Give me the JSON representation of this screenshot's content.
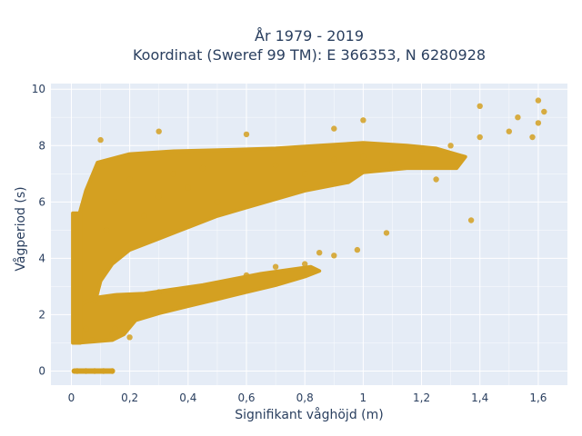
{
  "chart_data": {
    "type": "scatter",
    "title_lines": [
      "År 1979 - 2019",
      "Koordinat (Sweref 99 TM): E 366353, N 6280928"
    ],
    "xlabel": "Signifikant våghöjd (m)",
    "ylabel": "Vågperiod (s)",
    "xlim": [
      -0.07,
      1.7
    ],
    "ylim": [
      -0.5,
      10.2
    ],
    "x_ticks": [
      0,
      0.2,
      0.4,
      0.6,
      0.8,
      1,
      1.2,
      1.4,
      1.6
    ],
    "x_tick_labels": [
      "0",
      "0,2",
      "0,4",
      "0,6",
      "0,8",
      "1",
      "1,2",
      "1,4",
      "1,6"
    ],
    "y_ticks": [
      0,
      2,
      4,
      6,
      8,
      10
    ],
    "y_tick_labels": [
      "0",
      "2",
      "4",
      "6",
      "8",
      "10"
    ],
    "grid": true,
    "marker_color": "#d4a021",
    "plot_bgcolor": "#e5ecf6",
    "grid_color": "#ffffff",
    "representative_points": [
      {
        "x": 0.02,
        "y": 0.0
      },
      {
        "x": 0.05,
        "y": 0.0
      },
      {
        "x": 0.08,
        "y": 0.0
      },
      {
        "x": 0.11,
        "y": 0.0
      },
      {
        "x": 0.14,
        "y": 0.0
      },
      {
        "x": 0.02,
        "y": 1.2
      },
      {
        "x": 0.05,
        "y": 1.5
      },
      {
        "x": 0.08,
        "y": 2.5
      },
      {
        "x": 0.1,
        "y": 3.5
      },
      {
        "x": 0.12,
        "y": 5.0
      },
      {
        "x": 0.15,
        "y": 6.0
      },
      {
        "x": 0.2,
        "y": 6.8
      },
      {
        "x": 0.25,
        "y": 5.5
      },
      {
        "x": 0.3,
        "y": 6.2
      },
      {
        "x": 0.35,
        "y": 7.0
      },
      {
        "x": 0.4,
        "y": 6.5
      },
      {
        "x": 0.45,
        "y": 7.2
      },
      {
        "x": 0.5,
        "y": 6.0
      },
      {
        "x": 0.6,
        "y": 6.7
      },
      {
        "x": 0.7,
        "y": 7.3
      },
      {
        "x": 0.8,
        "y": 7.0
      },
      {
        "x": 0.9,
        "y": 7.5
      },
      {
        "x": 1.0,
        "y": 7.6
      },
      {
        "x": 1.1,
        "y": 7.4
      },
      {
        "x": 1.2,
        "y": 7.8
      },
      {
        "x": 1.3,
        "y": 8.0
      },
      {
        "x": 1.4,
        "y": 8.3
      },
      {
        "x": 1.5,
        "y": 8.5
      },
      {
        "x": 1.6,
        "y": 8.8
      },
      {
        "x": 0.1,
        "y": 8.2
      },
      {
        "x": 0.3,
        "y": 8.5
      },
      {
        "x": 0.6,
        "y": 8.4
      },
      {
        "x": 0.9,
        "y": 8.6
      },
      {
        "x": 1.0,
        "y": 8.9
      },
      {
        "x": 1.4,
        "y": 9.4
      },
      {
        "x": 1.53,
        "y": 9.0
      },
      {
        "x": 1.6,
        "y": 9.6
      },
      {
        "x": 1.62,
        "y": 9.2
      },
      {
        "x": 1.58,
        "y": 8.3
      },
      {
        "x": 1.37,
        "y": 5.35
      },
      {
        "x": 1.08,
        "y": 4.9
      },
      {
        "x": 1.25,
        "y": 6.8
      },
      {
        "x": 0.2,
        "y": 2.5
      },
      {
        "x": 0.3,
        "y": 2.8
      },
      {
        "x": 0.4,
        "y": 2.9
      },
      {
        "x": 0.5,
        "y": 3.1
      },
      {
        "x": 0.6,
        "y": 3.4
      },
      {
        "x": 0.7,
        "y": 3.7
      },
      {
        "x": 0.8,
        "y": 3.8
      },
      {
        "x": 0.9,
        "y": 4.1
      },
      {
        "x": 0.98,
        "y": 4.3
      },
      {
        "x": 0.85,
        "y": 4.2
      },
      {
        "x": 0.2,
        "y": 1.2
      },
      {
        "x": 0.15,
        "y": 1.5
      },
      {
        "x": 0.07,
        "y": 1.1
      },
      {
        "x": 0.14,
        "y": 1.3
      }
    ]
  }
}
